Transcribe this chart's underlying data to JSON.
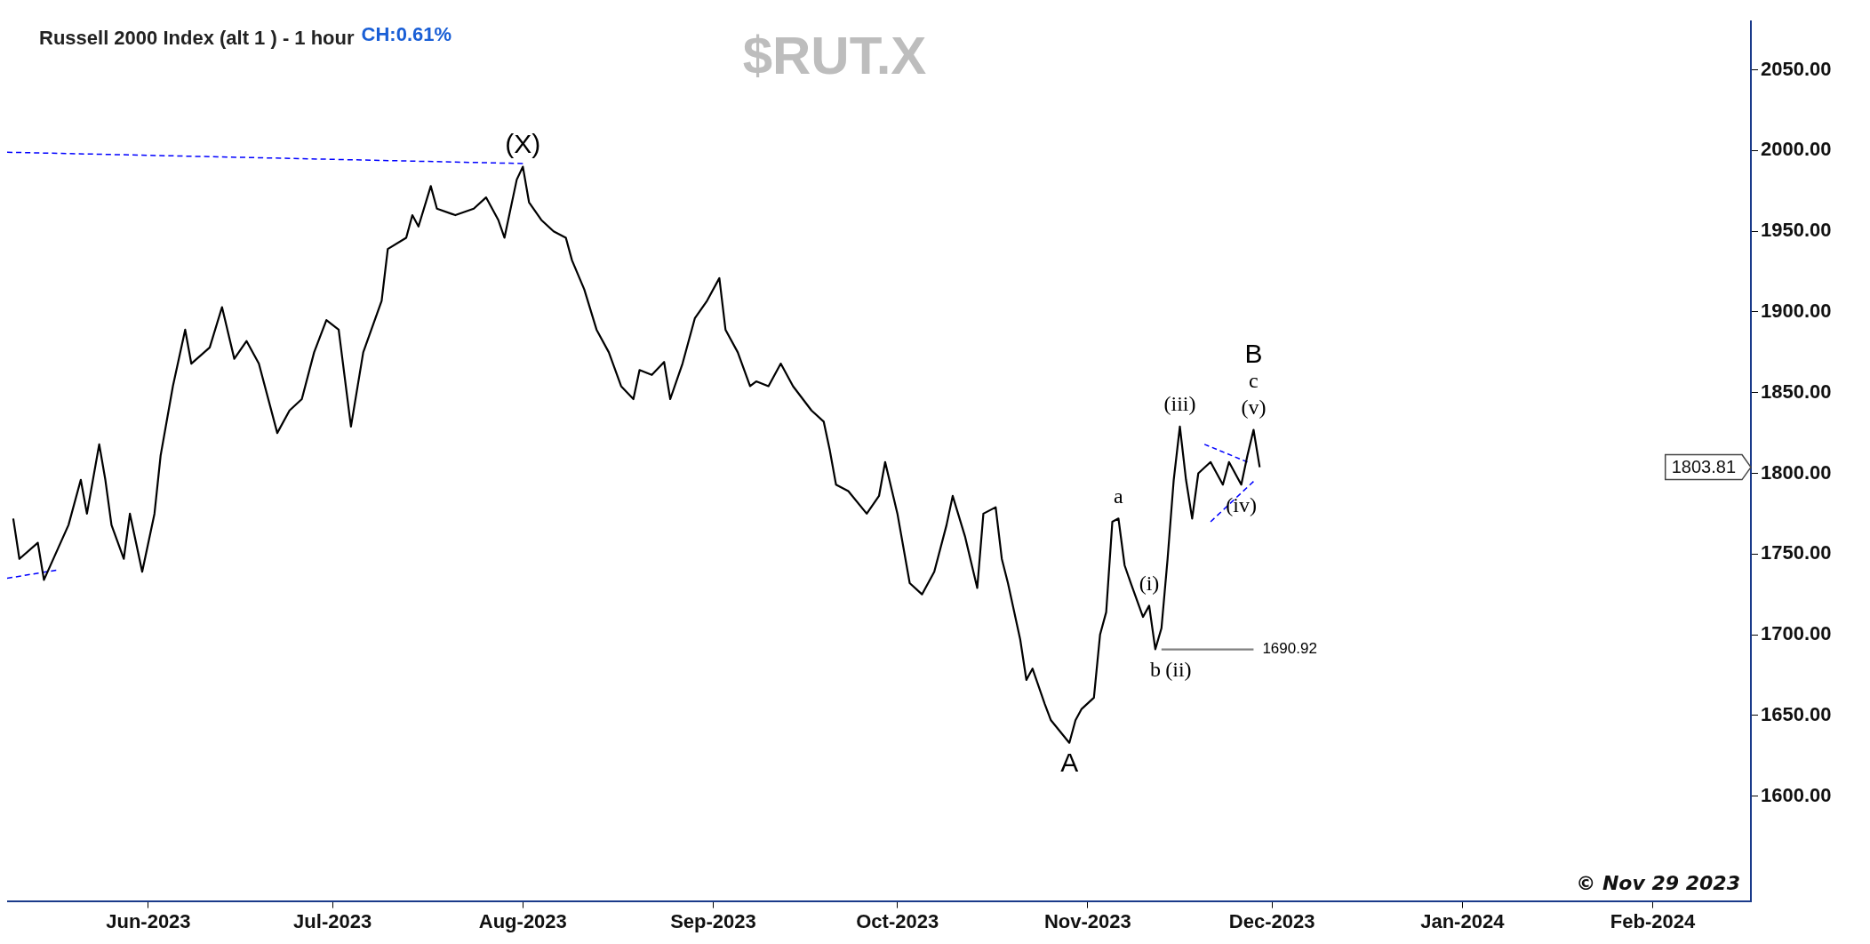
{
  "chart_data": {
    "type": "line",
    "title": "Russell 2000 Index (alt 1 ) - 1 hour",
    "subtitle": "CH:0.61%",
    "annotations": [
      "$RUT.X",
      "© Nov 29 2023",
      {
        "text": "(X)",
        "x": "2023-08-01",
        "y": 1990
      },
      {
        "text": "A",
        "x": "2023-10-29",
        "y": 1633
      },
      {
        "text": "a",
        "x": "2023-11-06",
        "y": 1772
      },
      {
        "text": "b",
        "x": "2023-11-12",
        "y": 1691
      },
      {
        "text": "(i)",
        "x": "2023-11-11",
        "y": 1718
      },
      {
        "text": "(ii)",
        "x": "2023-11-12",
        "y": 1691
      },
      {
        "text": "(iii)",
        "x": "2023-11-16",
        "y": 1829
      },
      {
        "text": "(iv)",
        "x": "2023-11-26",
        "y": 1793
      },
      {
        "text": "(v)",
        "x": "2023-11-28",
        "y": 1827
      },
      {
        "text": "c",
        "x": "2023-11-28",
        "y": 1827
      },
      {
        "text": "B",
        "x": "2023-11-28",
        "y": 1827
      },
      "1803.81",
      {
        "text": "1690.92",
        "x": "2023-11-28",
        "y": 1690.92
      }
    ],
    "xlim": [
      "2023-05-09",
      "2024-02-17"
    ],
    "xticks": [
      {
        "value": "2023-06-01",
        "label": "Jun-2023"
      },
      {
        "value": "2023-07-01",
        "label": "Jul-2023"
      },
      {
        "value": "2023-08-01",
        "label": "Aug-2023"
      },
      {
        "value": "2023-09-01",
        "label": "Sep-2023"
      },
      {
        "value": "2023-10-01",
        "label": "Oct-2023"
      },
      {
        "value": "2023-11-01",
        "label": "Nov-2023"
      },
      {
        "value": "2023-12-01",
        "label": "Dec-2023"
      },
      {
        "value": "2024-01-01",
        "label": "Jan-2024"
      },
      {
        "value": "2024-02-01",
        "label": "Feb-2024"
      }
    ],
    "ylim": [
      1535,
      2080
    ],
    "yticks": [
      {
        "value": 1600,
        "label": "1600.00"
      },
      {
        "value": 1650,
        "label": "1650.00"
      },
      {
        "value": 1700,
        "label": "1700.00"
      },
      {
        "value": 1750,
        "label": "1750.00"
      },
      {
        "value": 1800,
        "label": "1800.00"
      },
      {
        "value": 1850,
        "label": "1850.00"
      },
      {
        "value": 1900,
        "label": "1900.00"
      },
      {
        "value": 1950,
        "label": "1950.00"
      },
      {
        "value": 2000,
        "label": "2000.00"
      },
      {
        "value": 2050,
        "label": "2050.00"
      }
    ],
    "grid": false,
    "legend": false,
    "series": [
      {
        "color": "#000000",
        "x": [
          "2023-05-10",
          "2023-05-11",
          "2023-05-14",
          "2023-05-15",
          "2023-05-19",
          "2023-05-21",
          "2023-05-22",
          "2023-05-24",
          "2023-05-25",
          "2023-05-26",
          "2023-05-28",
          "2023-05-29",
          "2023-05-31",
          "2023-06-02",
          "2023-06-03",
          "2023-06-05",
          "2023-06-07",
          "2023-06-08",
          "2023-06-11",
          "2023-06-13",
          "2023-06-15",
          "2023-06-17",
          "2023-06-19",
          "2023-06-22",
          "2023-06-24",
          "2023-06-26",
          "2023-06-28",
          "2023-06-30",
          "2023-07-02",
          "2023-07-04",
          "2023-07-06",
          "2023-07-09",
          "2023-07-10",
          "2023-07-13",
          "2023-07-14",
          "2023-07-15",
          "2023-07-17",
          "2023-07-18",
          "2023-07-21",
          "2023-07-24",
          "2023-07-26",
          "2023-07-28",
          "2023-07-29",
          "2023-07-31",
          "2023-08-01",
          "2023-08-02",
          "2023-08-04",
          "2023-08-06",
          "2023-08-08",
          "2023-08-09",
          "2023-08-11",
          "2023-08-13",
          "2023-08-15",
          "2023-08-17",
          "2023-08-19",
          "2023-08-20",
          "2023-08-22",
          "2023-08-24",
          "2023-08-25",
          "2023-08-27",
          "2023-08-29",
          "2023-08-31",
          "2023-09-02",
          "2023-09-03",
          "2023-09-05",
          "2023-09-07",
          "2023-09-08",
          "2023-09-10",
          "2023-09-12",
          "2023-09-14",
          "2023-09-17",
          "2023-09-19",
          "2023-09-20",
          "2023-09-21",
          "2023-09-23",
          "2023-09-26",
          "2023-09-28",
          "2023-09-29",
          "2023-10-01",
          "2023-10-03",
          "2023-10-05",
          "2023-10-07",
          "2023-10-09",
          "2023-10-10",
          "2023-10-12",
          "2023-10-14",
          "2023-10-15",
          "2023-10-17",
          "2023-10-18",
          "2023-10-19",
          "2023-10-21",
          "2023-10-22",
          "2023-10-23",
          "2023-10-25",
          "2023-10-26",
          "2023-10-29",
          "2023-10-30",
          "2023-10-31",
          "2023-11-02",
          "2023-11-03",
          "2023-11-04",
          "2023-11-05",
          "2023-11-06",
          "2023-11-07",
          "2023-11-08",
          "2023-11-10",
          "2023-11-11",
          "2023-11-12",
          "2023-11-13",
          "2023-11-14",
          "2023-11-15",
          "2023-11-16",
          "2023-11-17",
          "2023-11-18",
          "2023-11-19",
          "2023-11-21",
          "2023-11-23",
          "2023-11-24",
          "2023-11-26",
          "2023-11-27",
          "2023-11-28",
          "2023-11-29"
        ],
        "values": [
          1772,
          1747,
          1757,
          1734,
          1768,
          1796,
          1775,
          1818,
          1796,
          1768,
          1747,
          1775,
          1739,
          1775,
          1811,
          1854,
          1889,
          1868,
          1878,
          1903,
          1871,
          1882,
          1868,
          1825,
          1839,
          1846,
          1875,
          1895,
          1889,
          1829,
          1875,
          1907,
          1939,
          1946,
          1960,
          1953,
          1978,
          1964,
          1960,
          1964,
          1971,
          1957,
          1946,
          1982,
          1990,
          1968,
          1957,
          1950,
          1946,
          1932,
          1914,
          1889,
          1875,
          1854,
          1846,
          1864,
          1861,
          1869,
          1846,
          1868,
          1896,
          1907,
          1921,
          1889,
          1875,
          1854,
          1857,
          1854,
          1868,
          1854,
          1839,
          1832,
          1814,
          1793,
          1789,
          1775,
          1786,
          1807,
          1775,
          1732,
          1725,
          1739,
          1768,
          1786,
          1761,
          1729,
          1775,
          1779,
          1747,
          1732,
          1697,
          1672,
          1679,
          1657,
          1647,
          1633,
          1647,
          1654,
          1661,
          1700,
          1714,
          1770,
          1772,
          1743,
          1732,
          1711,
          1718,
          1691,
          1704,
          1747,
          1796,
          1829,
          1796,
          1772,
          1800,
          1807,
          1793,
          1807,
          1793,
          1811,
          1827,
          1803.81
        ]
      },
      {
        "type": "line",
        "color": "#0000ff",
        "line_style": "dashed",
        "x": [
          "2023-05-09",
          "2023-08-01"
        ],
        "values": [
          1999,
          1992
        ]
      },
      {
        "type": "line",
        "color": "#0000ff",
        "line_style": "dashed",
        "x": [
          "2023-05-09",
          "2023-05-17"
        ],
        "values": [
          1735,
          1740
        ]
      },
      {
        "type": "line",
        "color": "#0000ff",
        "line_style": "dashed",
        "x": [
          "2023-11-20",
          "2023-11-27"
        ],
        "values": [
          1818,
          1807
        ]
      },
      {
        "type": "line",
        "color": "#0000ff",
        "line_style": "dashed",
        "x": [
          "2023-11-21",
          "2023-11-28"
        ],
        "values": [
          1770,
          1795
        ]
      },
      {
        "type": "line",
        "color": "#808080",
        "x": [
          "2023-11-13",
          "2023-11-28"
        ],
        "values": [
          1690.92,
          1690.92
        ]
      }
    ]
  }
}
